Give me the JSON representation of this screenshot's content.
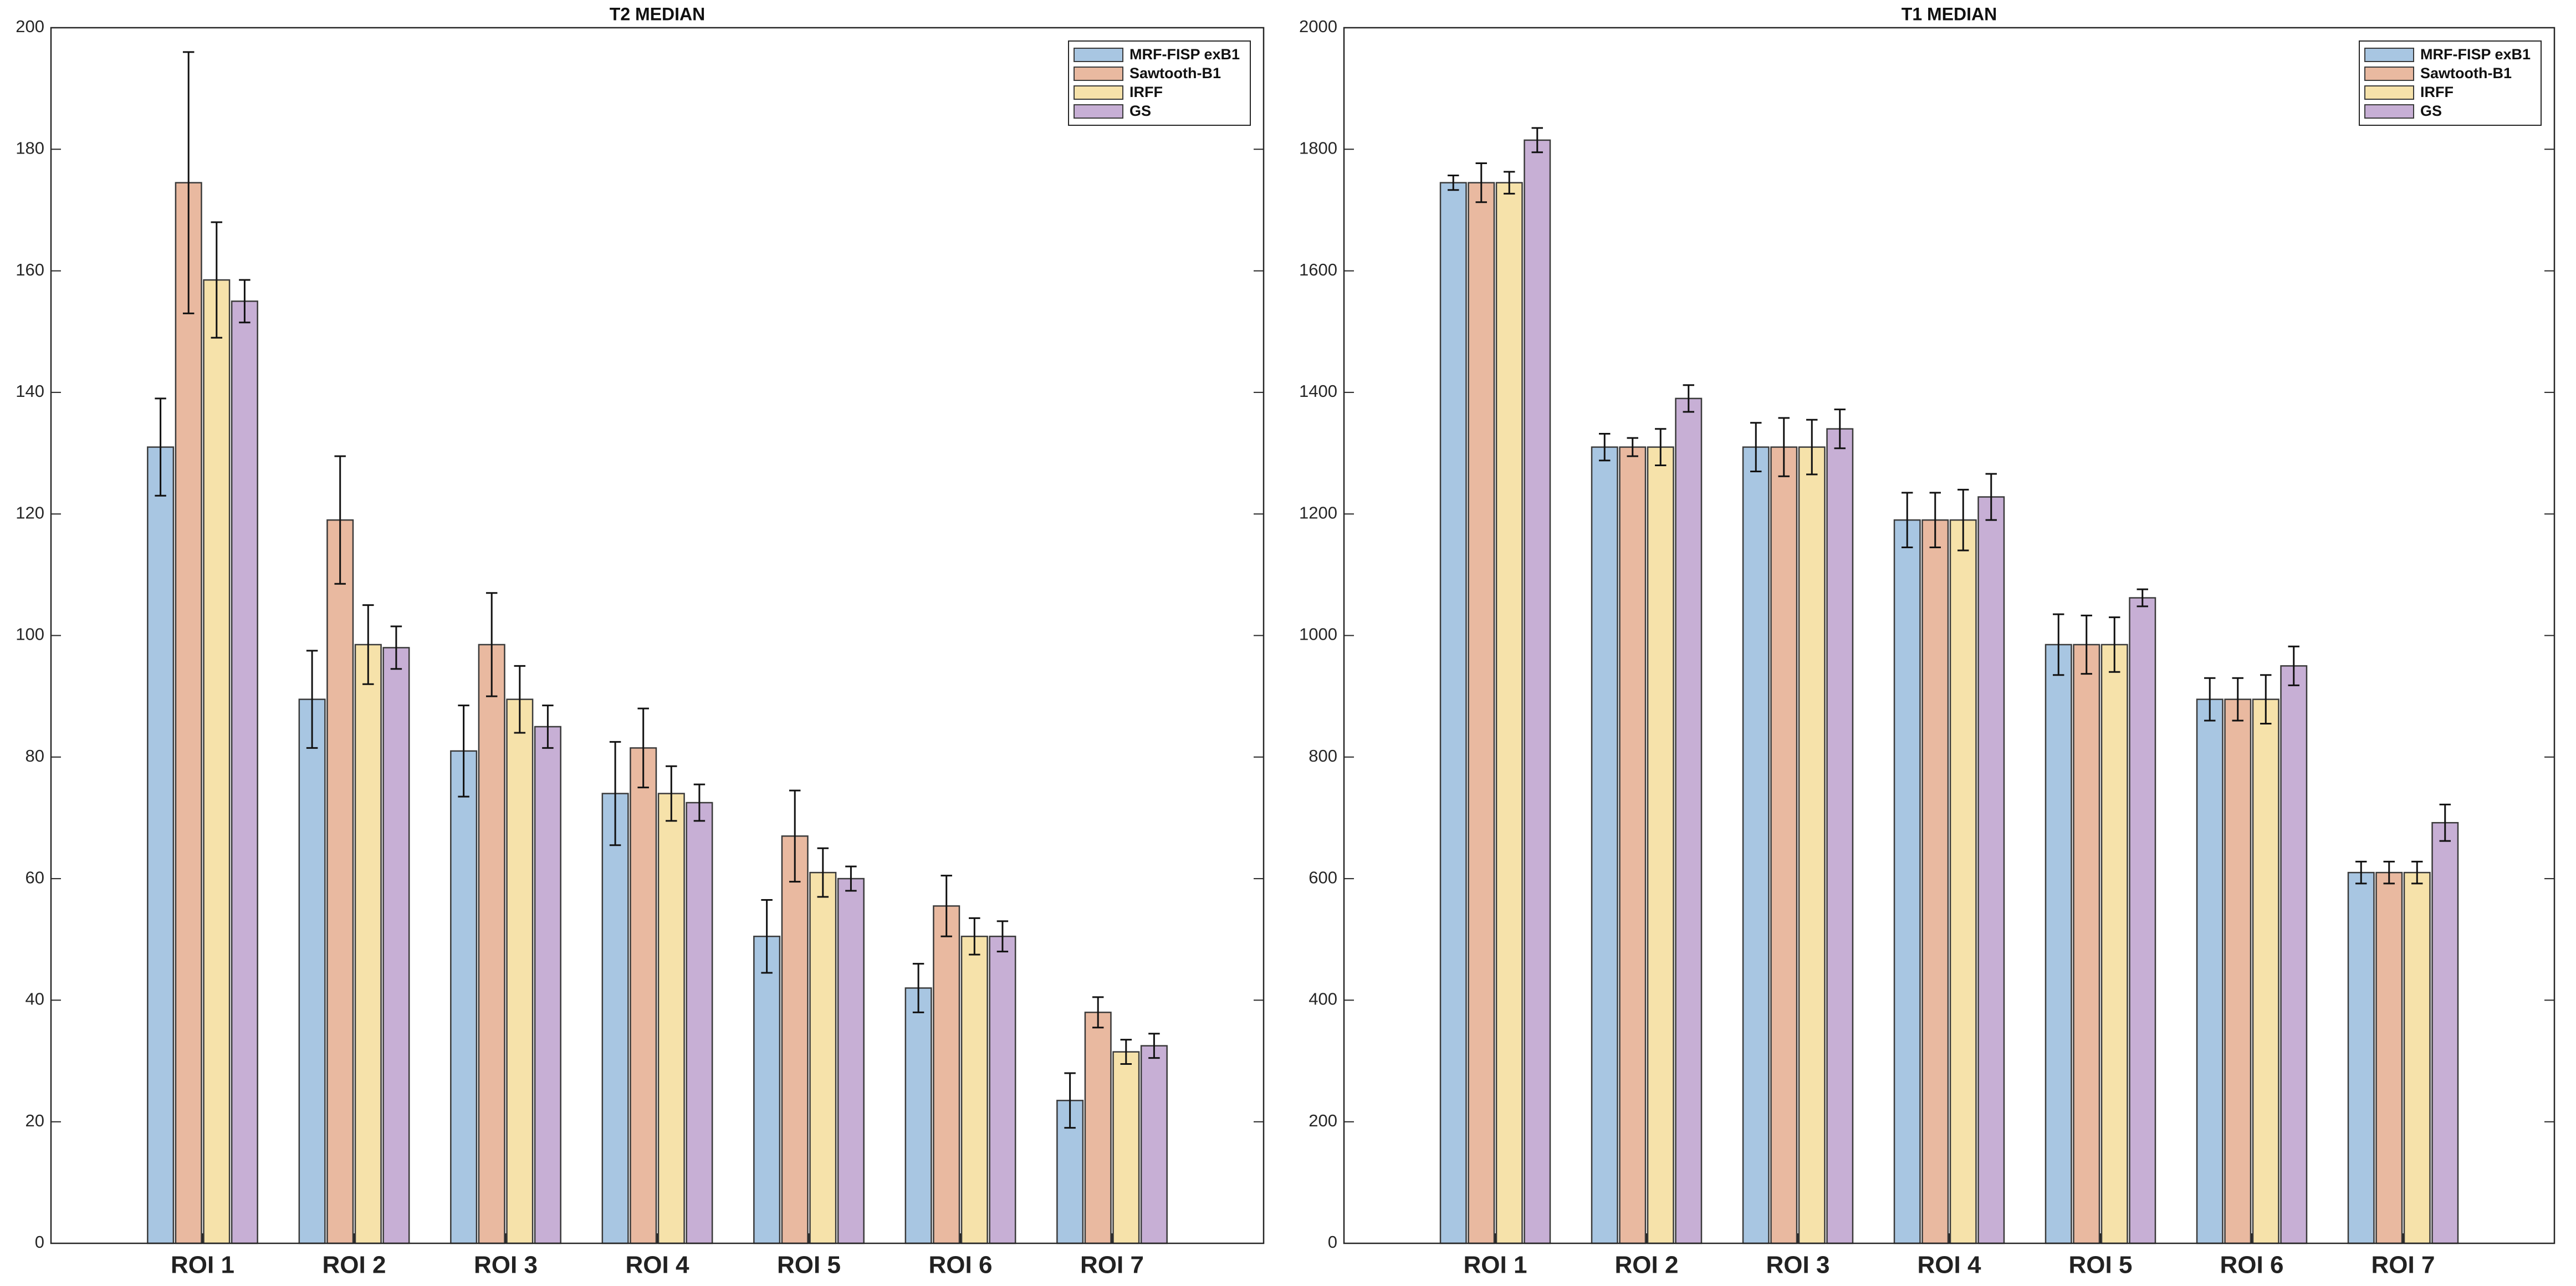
{
  "chart_data": [
    {
      "type": "bar",
      "title": "T2 MEDIAN",
      "categories": [
        "ROI 1",
        "ROI 2",
        "ROI 3",
        "ROI 4",
        "ROI 5",
        "ROI 6",
        "ROI 7"
      ],
      "series": [
        {
          "name": "MRF-FISP exB1",
          "color": "#a8c6e2",
          "values": [
            131,
            89.5,
            81,
            74,
            50.5,
            42,
            23.5
          ],
          "errors": [
            8,
            8,
            7.5,
            8.5,
            6,
            4,
            4.5
          ]
        },
        {
          "name": "Sawtooth-B1",
          "color": "#e9b9a0",
          "values": [
            174.5,
            119,
            98.5,
            81.5,
            67,
            55.5,
            38
          ],
          "errors": [
            21.5,
            10.5,
            8.5,
            6.5,
            7.5,
            5,
            2.5
          ]
        },
        {
          "name": "IRFF",
          "color": "#f6e2aa",
          "values": [
            158.5,
            98.5,
            89.5,
            74,
            61,
            50.5,
            31.5
          ],
          "errors": [
            9.5,
            6.5,
            5.5,
            4.5,
            4,
            3,
            2
          ]
        },
        {
          "name": "GS",
          "color": "#c7afd5",
          "values": [
            155,
            98,
            85,
            72.5,
            60,
            50.5,
            32.5
          ],
          "errors": [
            3.5,
            3.5,
            3.5,
            3,
            2,
            2.5,
            2
          ]
        }
      ],
      "ylim": [
        0,
        200
      ],
      "yticks": [
        0,
        20,
        40,
        60,
        80,
        100,
        120,
        140,
        160,
        180,
        200
      ],
      "legend": "upper right"
    },
    {
      "type": "bar",
      "title": "T1 MEDIAN",
      "categories": [
        "ROI 1",
        "ROI 2",
        "ROI 3",
        "ROI 4",
        "ROI 5",
        "ROI 6",
        "ROI 7"
      ],
      "series": [
        {
          "name": "MRF-FISP exB1",
          "color": "#a8c6e2",
          "values": [
            1745,
            1310,
            1310,
            1190,
            985,
            895,
            610
          ],
          "errors": [
            12,
            22,
            40,
            45,
            50,
            35,
            18
          ]
        },
        {
          "name": "Sawtooth-B1",
          "color": "#e9b9a0",
          "values": [
            1745,
            1310,
            1310,
            1190,
            985,
            895,
            610
          ],
          "errors": [
            32,
            15,
            48,
            45,
            48,
            35,
            18
          ]
        },
        {
          "name": "IRFF",
          "color": "#f6e2aa",
          "values": [
            1745,
            1310,
            1310,
            1190,
            985,
            895,
            610
          ],
          "errors": [
            18,
            30,
            45,
            50,
            45,
            40,
            18
          ]
        },
        {
          "name": "GS",
          "color": "#c7afd5",
          "values": [
            1815,
            1390,
            1340,
            1228,
            1062,
            950,
            692
          ],
          "errors": [
            20,
            22,
            32,
            38,
            14,
            32,
            30
          ]
        }
      ],
      "ylim": [
        0,
        2000
      ],
      "yticks": [
        0,
        200,
        400,
        600,
        800,
        1000,
        1200,
        1400,
        1600,
        1800,
        2000
      ],
      "legend": "upper right"
    }
  ]
}
